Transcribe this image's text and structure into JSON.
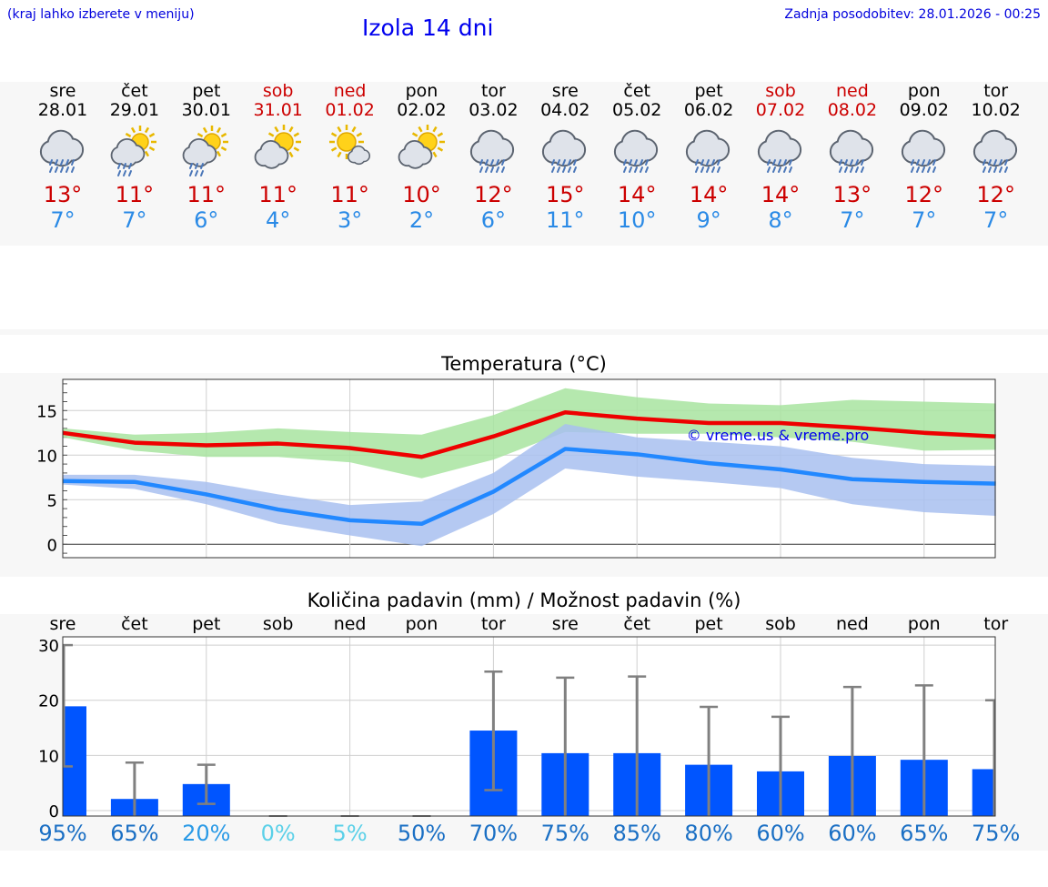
{
  "header": {
    "hint": "(kraj lahko izberete v meniju)",
    "title": "Izola 14 dni",
    "updated": "Zadnja posodobitev: 28.01.2026 - 00:25"
  },
  "days": [
    {
      "name": "sre",
      "date": "28.01",
      "weekend": false,
      "icon": "rain-cloud-icon",
      "tmax": "13°",
      "tmin": "7°"
    },
    {
      "name": "čet",
      "date": "29.01",
      "weekend": false,
      "icon": "sun-cloud-rain-icon",
      "tmax": "11°",
      "tmin": "7°"
    },
    {
      "name": "pet",
      "date": "30.01",
      "weekend": false,
      "icon": "sun-cloud-rain-icon",
      "tmax": "11°",
      "tmin": "6°"
    },
    {
      "name": "sob",
      "date": "31.01",
      "weekend": true,
      "icon": "sun-cloud-icon",
      "tmax": "11°",
      "tmin": "4°"
    },
    {
      "name": "ned",
      "date": "01.02",
      "weekend": true,
      "icon": "sun-small-cloud-icon",
      "tmax": "11°",
      "tmin": "3°"
    },
    {
      "name": "pon",
      "date": "02.02",
      "weekend": false,
      "icon": "sun-cloud-icon",
      "tmax": "10°",
      "tmin": "2°"
    },
    {
      "name": "tor",
      "date": "03.02",
      "weekend": false,
      "icon": "rain-cloud-icon",
      "tmax": "12°",
      "tmin": "6°"
    },
    {
      "name": "sre",
      "date": "04.02",
      "weekend": false,
      "icon": "rain-cloud-icon",
      "tmax": "15°",
      "tmin": "11°"
    },
    {
      "name": "čet",
      "date": "05.02",
      "weekend": false,
      "icon": "rain-cloud-icon",
      "tmax": "14°",
      "tmin": "10°"
    },
    {
      "name": "pet",
      "date": "06.02",
      "weekend": false,
      "icon": "rain-cloud-icon",
      "tmax": "14°",
      "tmin": "9°"
    },
    {
      "name": "sob",
      "date": "07.02",
      "weekend": true,
      "icon": "rain-cloud-icon",
      "tmax": "14°",
      "tmin": "8°"
    },
    {
      "name": "ned",
      "date": "08.02",
      "weekend": true,
      "icon": "rain-cloud-icon",
      "tmax": "13°",
      "tmin": "7°"
    },
    {
      "name": "pon",
      "date": "09.02",
      "weekend": false,
      "icon": "rain-cloud-icon",
      "tmax": "12°",
      "tmin": "7°"
    },
    {
      "name": "tor",
      "date": "10.02",
      "weekend": false,
      "icon": "rain-cloud-icon",
      "tmax": "12°",
      "tmin": "7°"
    }
  ],
  "colors": {
    "max_line": "#ee0000",
    "min_line": "#2288ff",
    "max_band": "#a8e4a0",
    "min_band": "#a8c0f0",
    "overlap_band": "#7fbf9f",
    "bar": "#0055ff",
    "whisker": "#808080",
    "weekend": "#cc0000"
  },
  "chart_data": [
    {
      "type": "line",
      "title": "Temperatura (°C)",
      "watermark": "© vreme.us & vreme.pro",
      "ylim": [
        -1.5,
        18.5
      ],
      "yticks": [
        "0",
        "5",
        "10",
        "15"
      ],
      "x": [
        0,
        1,
        2,
        3,
        4,
        5,
        6,
        7,
        8,
        9,
        10,
        11,
        12,
        13
      ],
      "series": [
        {
          "name": "max",
          "values": [
            12.5,
            11.4,
            11.1,
            11.3,
            10.8,
            9.8,
            12.1,
            14.8,
            14.1,
            13.6,
            13.6,
            13.1,
            12.5,
            12.1
          ],
          "band_low": [
            12.0,
            10.5,
            9.8,
            9.8,
            9.2,
            7.4,
            9.5,
            12.6,
            12.4,
            12.4,
            12.0,
            11.5,
            10.5,
            10.6
          ],
          "band_high": [
            13.0,
            12.3,
            12.5,
            13.0,
            12.6,
            12.3,
            14.5,
            17.5,
            16.5,
            15.8,
            15.6,
            16.2,
            16.0,
            15.8
          ]
        },
        {
          "name": "min",
          "values": [
            7.1,
            7.0,
            5.6,
            3.9,
            2.7,
            2.3,
            5.9,
            10.7,
            10.1,
            9.1,
            8.4,
            7.3,
            7.0,
            6.8
          ],
          "band_low": [
            6.7,
            6.2,
            4.5,
            2.3,
            1.0,
            -0.2,
            3.4,
            8.5,
            7.6,
            7.0,
            6.3,
            4.5,
            3.6,
            3.2
          ],
          "band_high": [
            7.8,
            7.8,
            7.0,
            5.6,
            4.4,
            4.8,
            8.0,
            13.5,
            12.0,
            11.5,
            11.0,
            9.7,
            9.0,
            8.8
          ]
        }
      ]
    },
    {
      "type": "bar",
      "title": "Količina padavin (mm) / Možnost padavin (%)",
      "ylabel": "mm",
      "ylim": [
        -1,
        31.5
      ],
      "yticks": [
        "0",
        "10",
        "20",
        "30"
      ],
      "categories": [
        "sre",
        "čet",
        "pet",
        "sob",
        "ned",
        "pon",
        "tor",
        "sre",
        "čet",
        "pet",
        "sob",
        "ned",
        "pon",
        "tor"
      ],
      "values": [
        18.9,
        2.1,
        4.8,
        0,
        0,
        0,
        14.5,
        10.4,
        10.4,
        8.3,
        7.1,
        9.9,
        9.2,
        7.5
      ],
      "err_low": [
        8.0,
        0,
        1.2,
        0,
        0,
        0,
        3.7,
        0,
        0,
        0,
        0,
        0,
        0,
        0
      ],
      "err_high": [
        30.0,
        8.7,
        8.3,
        0,
        0,
        0,
        25.2,
        24.1,
        24.3,
        18.8,
        17.0,
        22.4,
        22.7,
        20.0
      ],
      "probability": [
        "95%",
        "65%",
        "20%",
        "0%",
        "5%",
        "50%",
        "70%",
        "75%",
        "85%",
        "80%",
        "60%",
        "60%",
        "65%",
        "75%"
      ],
      "probability_colors": [
        "#1a6fc4",
        "#1a6fc4",
        "#2a9ae6",
        "#5ad0e8",
        "#5ad0e8",
        "#1a6fc4",
        "#1a6fc4",
        "#1a6fc4",
        "#1a6fc4",
        "#1a6fc4",
        "#1a6fc4",
        "#1a6fc4",
        "#1a6fc4",
        "#1a6fc4"
      ]
    }
  ]
}
